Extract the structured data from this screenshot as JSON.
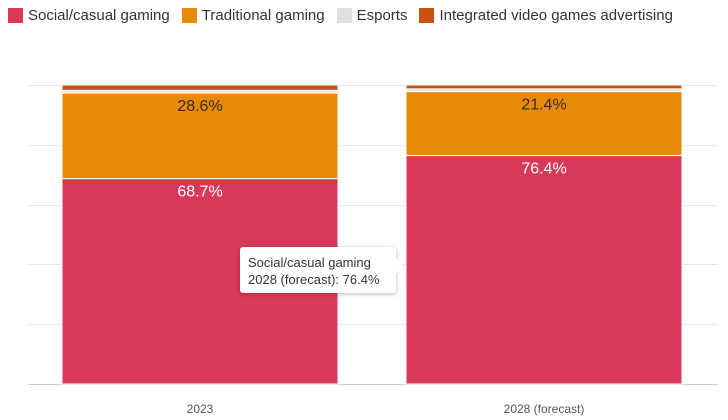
{
  "colors": {
    "social_casual": "#d8395a",
    "traditional": "#e8890a",
    "esports": "#e0e0e0",
    "integrated_ads": "#c85210",
    "grid": "#e6e6e6",
    "label_dark": "#3a2a10",
    "label_light": "#ffffff"
  },
  "legend": [
    {
      "label": "Social/casual gaming",
      "color": "#d8395a"
    },
    {
      "label": "Traditional gaming",
      "color": "#e8890a"
    },
    {
      "label": "Esports",
      "color": "#e0e0e0"
    },
    {
      "label": "Integrated video games advertising",
      "color": "#c85210"
    }
  ],
  "tooltip": {
    "series": "Social/casual gaming",
    "category": "2028 (forecast):",
    "value": "76.4%"
  },
  "chart_data": {
    "type": "bar",
    "stacked": true,
    "percent": true,
    "categories": [
      "2023",
      "2028 (forecast)"
    ],
    "ylim": [
      0,
      100
    ],
    "grid": true,
    "legend_position": "top-left",
    "series": [
      {
        "name": "Social/casual gaming",
        "color": "#d8395a",
        "values": [
          68.7,
          76.4
        ],
        "labels": [
          "68.7%",
          "76.4%"
        ],
        "label_color": "#ffffff"
      },
      {
        "name": "Traditional gaming",
        "color": "#e8890a",
        "values": [
          28.6,
          21.4
        ],
        "labels": [
          "28.6%",
          "21.4%"
        ],
        "label_color": "#3a2a10"
      },
      {
        "name": "Esports",
        "color": "#e0e0e0",
        "values": [
          0.9,
          0.9
        ],
        "labels": [
          null,
          null
        ]
      },
      {
        "name": "Integrated video games advertising",
        "color": "#c85210",
        "values": [
          1.8,
          1.3
        ],
        "labels": [
          null,
          null
        ]
      }
    ]
  }
}
